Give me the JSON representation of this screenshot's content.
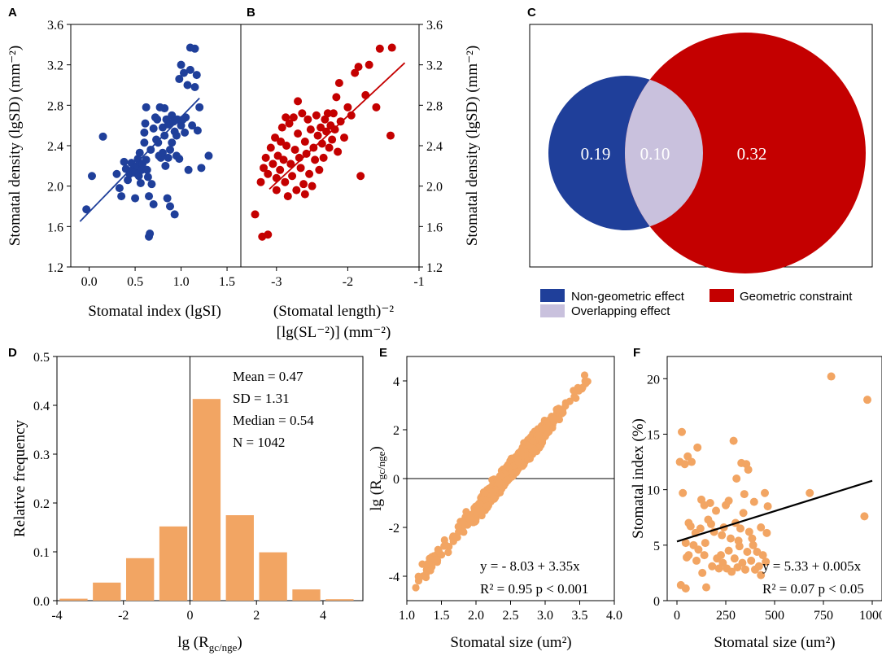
{
  "colors": {
    "blue": "#1f3f9a",
    "red": "#c40000",
    "lavender": "#c9c1dd",
    "orange": "#f2a563"
  },
  "panel_labels": [
    "A",
    "B",
    "C",
    "D",
    "E",
    "F"
  ],
  "chart_data": [
    {
      "id": "A",
      "type": "scatter",
      "title": "",
      "xlabel": "Stomatal index (lgSI)",
      "ylabel": "Stomatal density (lgSD) (mm⁻²)",
      "xlim": [
        -0.2,
        1.65
      ],
      "ylim": [
        1.2,
        3.6
      ],
      "xticks": [
        0.0,
        0.5,
        1.0,
        1.5
      ],
      "xtick_labels": [
        "0.0",
        "0.5",
        "1.0",
        "1.5"
      ],
      "yticks": [
        1.2,
        1.6,
        2.0,
        2.4,
        2.8,
        3.2,
        3.6
      ],
      "ytick_labels": [
        "1.2",
        "1.6",
        "2.0",
        "2.4",
        "2.8",
        "3.2",
        "3.6"
      ],
      "fit_line": {
        "x": [
          -0.1,
          1.2
        ],
        "y": [
          1.65,
          2.87
        ]
      },
      "points": [
        [
          -0.03,
          1.77
        ],
        [
          0.03,
          2.1
        ],
        [
          0.15,
          2.49
        ],
        [
          0.3,
          2.12
        ],
        [
          0.33,
          1.98
        ],
        [
          0.35,
          1.9
        ],
        [
          0.38,
          2.24
        ],
        [
          0.4,
          2.17
        ],
        [
          0.42,
          2.06
        ],
        [
          0.44,
          2.12
        ],
        [
          0.46,
          2.23
        ],
        [
          0.48,
          2.17
        ],
        [
          0.5,
          2.13
        ],
        [
          0.5,
          1.88
        ],
        [
          0.52,
          2.2
        ],
        [
          0.53,
          2.27
        ],
        [
          0.54,
          2.1
        ],
        [
          0.55,
          2.33
        ],
        [
          0.56,
          2.03
        ],
        [
          0.57,
          2.16
        ],
        [
          0.58,
          2.22
        ],
        [
          0.6,
          2.43
        ],
        [
          0.6,
          2.53
        ],
        [
          0.61,
          2.62
        ],
        [
          0.62,
          2.78
        ],
        [
          0.62,
          2.26
        ],
        [
          0.63,
          2.16
        ],
        [
          0.64,
          2.09
        ],
        [
          0.65,
          1.9
        ],
        [
          0.65,
          1.5
        ],
        [
          0.66,
          1.53
        ],
        [
          0.67,
          2.36
        ],
        [
          0.68,
          2.02
        ],
        [
          0.7,
          2.57
        ],
        [
          0.7,
          1.82
        ],
        [
          0.72,
          2.68
        ],
        [
          0.73,
          2.46
        ],
        [
          0.74,
          2.66
        ],
        [
          0.75,
          2.43
        ],
        [
          0.76,
          2.3
        ],
        [
          0.77,
          2.78
        ],
        [
          0.78,
          2.28
        ],
        [
          0.8,
          2.58
        ],
        [
          0.8,
          2.33
        ],
        [
          0.82,
          2.5
        ],
        [
          0.82,
          2.77
        ],
        [
          0.83,
          2.2
        ],
        [
          0.84,
          2.66
        ],
        [
          0.85,
          1.88
        ],
        [
          0.86,
          2.28
        ],
        [
          0.86,
          2.61
        ],
        [
          0.88,
          2.36
        ],
        [
          0.88,
          1.8
        ],
        [
          0.9,
          2.7
        ],
        [
          0.9,
          2.43
        ],
        [
          0.92,
          2.64
        ],
        [
          0.93,
          2.54
        ],
        [
          0.93,
          1.72
        ],
        [
          0.95,
          2.3
        ],
        [
          0.95,
          2.5
        ],
        [
          0.96,
          2.66
        ],
        [
          0.98,
          2.27
        ],
        [
          0.98,
          3.06
        ],
        [
          1.0,
          2.6
        ],
        [
          1.0,
          3.2
        ],
        [
          1.02,
          2.66
        ],
        [
          1.03,
          3.12
        ],
        [
          1.04,
          2.53
        ],
        [
          1.05,
          2.68
        ],
        [
          1.07,
          3.0
        ],
        [
          1.08,
          2.16
        ],
        [
          1.1,
          3.37
        ],
        [
          1.1,
          3.15
        ],
        [
          1.12,
          2.6
        ],
        [
          1.15,
          3.36
        ],
        [
          1.15,
          2.98
        ],
        [
          1.17,
          3.1
        ],
        [
          1.2,
          2.78
        ],
        [
          1.22,
          2.18
        ],
        [
          1.3,
          2.3
        ],
        [
          1.18,
          2.55
        ]
      ]
    },
    {
      "id": "B",
      "type": "scatter",
      "title": "",
      "xlabel": "(Stomatal length)⁻²",
      "xlabel2": "[lg(SL⁻²)] (mm⁻²)",
      "ylabel": "Stomatal density (lgSD) (mm⁻²)",
      "xlim": [
        -3.5,
        -1.0
      ],
      "ylim": [
        1.2,
        3.6
      ],
      "xticks": [
        -3,
        -2,
        -1
      ],
      "xtick_labels": [
        "-3",
        "-2",
        "-1"
      ],
      "yticks": [
        1.2,
        1.6,
        2.0,
        2.4,
        2.8,
        3.2,
        3.6
      ],
      "ytick_labels": [
        "1.2",
        "1.6",
        "2.0",
        "2.4",
        "2.8",
        "3.2",
        "3.6"
      ],
      "fit_line": {
        "x": [
          -3.1,
          -1.2
        ],
        "y": [
          1.97,
          3.22
        ]
      },
      "points": [
        [
          -3.3,
          1.72
        ],
        [
          -3.2,
          1.5
        ],
        [
          -3.12,
          1.52
        ],
        [
          -3.22,
          2.04
        ],
        [
          -3.18,
          2.18
        ],
        [
          -3.15,
          2.28
        ],
        [
          -3.12,
          2.12
        ],
        [
          -3.08,
          2.38
        ],
        [
          -3.05,
          2.22
        ],
        [
          -3.02,
          2.48
        ],
        [
          -3.0,
          2.08
        ],
        [
          -2.98,
          2.3
        ],
        [
          -2.95,
          2.16
        ],
        [
          -2.92,
          2.58
        ],
        [
          -2.9,
          2.26
        ],
        [
          -2.88,
          2.04
        ],
        [
          -2.86,
          2.4
        ],
        [
          -2.84,
          1.9
        ],
        [
          -2.82,
          2.62
        ],
        [
          -2.8,
          2.22
        ],
        [
          -2.78,
          2.1
        ],
        [
          -2.76,
          2.68
        ],
        [
          -2.74,
          2.36
        ],
        [
          -2.72,
          1.96
        ],
        [
          -2.7,
          2.52
        ],
        [
          -2.68,
          2.28
        ],
        [
          -2.66,
          2.18
        ],
        [
          -2.64,
          2.72
        ],
        [
          -2.62,
          2.02
        ],
        [
          -2.6,
          2.44
        ],
        [
          -2.58,
          2.32
        ],
        [
          -2.56,
          2.66
        ],
        [
          -2.54,
          2.12
        ],
        [
          -2.52,
          2.56
        ],
        [
          -2.5,
          2.0
        ],
        [
          -2.48,
          2.38
        ],
        [
          -2.46,
          2.26
        ],
        [
          -2.44,
          2.7
        ],
        [
          -2.42,
          2.5
        ],
        [
          -2.4,
          2.16
        ],
        [
          -2.38,
          2.58
        ],
        [
          -2.36,
          2.42
        ],
        [
          -2.34,
          2.28
        ],
        [
          -2.32,
          2.66
        ],
        [
          -2.3,
          2.54
        ],
        [
          -2.28,
          2.72
        ],
        [
          -2.26,
          2.38
        ],
        [
          -2.24,
          2.6
        ],
        [
          -2.22,
          2.46
        ],
        [
          -2.2,
          2.72
        ],
        [
          -2.18,
          2.56
        ],
        [
          -2.16,
          2.88
        ],
        [
          -2.14,
          2.34
        ],
        [
          -2.12,
          3.02
        ],
        [
          -2.1,
          2.64
        ],
        [
          -2.05,
          2.48
        ],
        [
          -2.0,
          2.78
        ],
        [
          -1.95,
          2.7
        ],
        [
          -1.9,
          3.12
        ],
        [
          -1.85,
          3.18
        ],
        [
          -1.82,
          2.1
        ],
        [
          -1.75,
          2.9
        ],
        [
          -1.7,
          3.2
        ],
        [
          -1.6,
          2.78
        ],
        [
          -1.55,
          3.36
        ],
        [
          -1.4,
          2.5
        ],
        [
          -1.38,
          3.37
        ],
        [
          -2.94,
          2.44
        ],
        [
          -2.87,
          2.68
        ],
        [
          -2.6,
          1.92
        ],
        [
          -2.7,
          2.84
        ],
        [
          -3.0,
          1.96
        ]
      ]
    },
    {
      "id": "C",
      "type": "venn",
      "title": "",
      "sets": [
        {
          "name": "Non-geometric effect",
          "value": 0.19
        },
        {
          "name": "Overlapping effect",
          "value": 0.1
        },
        {
          "name": "Geometric constraint",
          "value": 0.32
        }
      ],
      "region_labels": [
        "0.19",
        "0.10",
        "0.32"
      ],
      "legend": [
        "Non-geometric effect",
        "Geometric constraint",
        "Overlapping effect"
      ]
    },
    {
      "id": "D",
      "type": "bar",
      "title": "",
      "xlabel": "lg (R",
      "xlabel_sub": "gc/nge",
      "xlabel_end": ")",
      "ylabel": "Relative frequency",
      "xlim": [
        -4,
        5.2
      ],
      "ylim": [
        0,
        0.5
      ],
      "xticks": [
        -4,
        -2,
        0,
        2,
        4
      ],
      "xtick_labels": [
        "-4",
        "-2",
        "0",
        "2",
        "4"
      ],
      "yticks": [
        0.0,
        0.1,
        0.2,
        0.3,
        0.4,
        0.5
      ],
      "ytick_labels": [
        "0.0",
        "0.1",
        "0.2",
        "0.3",
        "0.4",
        "0.5"
      ],
      "bin_centers": [
        -3.5,
        -2.5,
        -1.5,
        -0.5,
        0.5,
        1.5,
        2.5,
        3.5,
        4.5
      ],
      "values": [
        0.004,
        0.037,
        0.087,
        0.152,
        0.413,
        0.175,
        0.099,
        0.023,
        0.003
      ],
      "stats": [
        "Mean = 0.47",
        "SD = 1.31",
        "Median = 0.54",
        "N = 1042"
      ]
    },
    {
      "id": "E",
      "type": "scatter",
      "title": "",
      "xlabel": "Stomatal size (um²)",
      "ylabel": "lg (R",
      "ylabel_sub": "gc/nge",
      "ylabel_end": ")",
      "xlim": [
        1.0,
        4.0
      ],
      "ylim": [
        -5,
        5
      ],
      "xticks": [
        1.0,
        1.5,
        2.0,
        2.5,
        3.0,
        3.5,
        4.0
      ],
      "xtick_labels": [
        "1.0",
        "1.5",
        "2.0",
        "2.5",
        "3.0",
        "3.5",
        "4.0"
      ],
      "yticks": [
        -4,
        -2,
        0,
        2,
        4
      ],
      "ytick_labels": [
        "-4",
        "-2",
        "0",
        "2",
        "4"
      ],
      "equation": "y = - 8.03 + 3.35x",
      "r2_label": "R² = 0.95 p < 0.001",
      "slope": 3.35,
      "intercept": -8.03,
      "n_points": 1042,
      "x_range": [
        1.12,
        3.62
      ]
    },
    {
      "id": "F",
      "type": "scatter",
      "title": "",
      "xlabel": "Stomatal size (um²)",
      "ylabel": "Stomatal index (%)",
      "xlim": [
        -50,
        1050
      ],
      "ylim": [
        0,
        22
      ],
      "xticks": [
        0,
        250,
        500,
        750,
        1000
      ],
      "xtick_labels": [
        "0",
        "250",
        "500",
        "750",
        "1000"
      ],
      "yticks": [
        0,
        5,
        10,
        15,
        20
      ],
      "ytick_labels": [
        "0",
        "5",
        "10",
        "15",
        "20"
      ],
      "equation": "y = 5.33 + 0.005x",
      "r2_label": "R² = 0.07 p < 0.05",
      "fit_line": {
        "x": [
          0,
          1000
        ],
        "y": [
          5.33,
          10.8
        ]
      },
      "points": [
        [
          15,
          12.5
        ],
        [
          25,
          15.2
        ],
        [
          30,
          9.7
        ],
        [
          40,
          12.3
        ],
        [
          45,
          5.2
        ],
        [
          50,
          3.9
        ],
        [
          20,
          1.4
        ],
        [
          45,
          1.1
        ],
        [
          55,
          13.0
        ],
        [
          60,
          4.1
        ],
        [
          70,
          6.7
        ],
        [
          75,
          12.5
        ],
        [
          85,
          5.0
        ],
        [
          95,
          6.1
        ],
        [
          100,
          3.6
        ],
        [
          105,
          13.8
        ],
        [
          110,
          4.6
        ],
        [
          120,
          6.5
        ],
        [
          125,
          9.1
        ],
        [
          130,
          2.5
        ],
        [
          140,
          8.6
        ],
        [
          145,
          5.2
        ],
        [
          150,
          1.2
        ],
        [
          160,
          7.3
        ],
        [
          170,
          8.8
        ],
        [
          180,
          3.1
        ],
        [
          190,
          6.2
        ],
        [
          200,
          8.1
        ],
        [
          205,
          3.8
        ],
        [
          215,
          2.9
        ],
        [
          225,
          4.1
        ],
        [
          235,
          3.4
        ],
        [
          240,
          6.6
        ],
        [
          250,
          8.6
        ],
        [
          255,
          2.9
        ],
        [
          265,
          4.5
        ],
        [
          275,
          5.6
        ],
        [
          280,
          2.6
        ],
        [
          290,
          14.4
        ],
        [
          295,
          3.8
        ],
        [
          300,
          7.0
        ],
        [
          305,
          11.0
        ],
        [
          310,
          3.0
        ],
        [
          320,
          4.9
        ],
        [
          325,
          6.5
        ],
        [
          330,
          12.4
        ],
        [
          335,
          3.4
        ],
        [
          340,
          7.9
        ],
        [
          345,
          9.6
        ],
        [
          350,
          2.8
        ],
        [
          355,
          12.3
        ],
        [
          360,
          4.4
        ],
        [
          365,
          11.8
        ],
        [
          370,
          6.2
        ],
        [
          380,
          3.6
        ],
        [
          385,
          5.6
        ],
        [
          390,
          5.0
        ],
        [
          395,
          8.9
        ],
        [
          400,
          2.8
        ],
        [
          410,
          4.4
        ],
        [
          420,
          3.1
        ],
        [
          430,
          6.6
        ],
        [
          440,
          4.1
        ],
        [
          450,
          9.7
        ],
        [
          455,
          3.5
        ],
        [
          460,
          6.1
        ],
        [
          465,
          8.5
        ],
        [
          680,
          9.7
        ],
        [
          790,
          20.2
        ],
        [
          960,
          7.6
        ],
        [
          975,
          18.1
        ],
        [
          230,
          5.9
        ],
        [
          175,
          6.9
        ],
        [
          265,
          9.0
        ],
        [
          140,
          4.1
        ],
        [
          60,
          7.0
        ],
        [
          315,
          5.4
        ],
        [
          430,
          2.3
        ]
      ]
    }
  ]
}
